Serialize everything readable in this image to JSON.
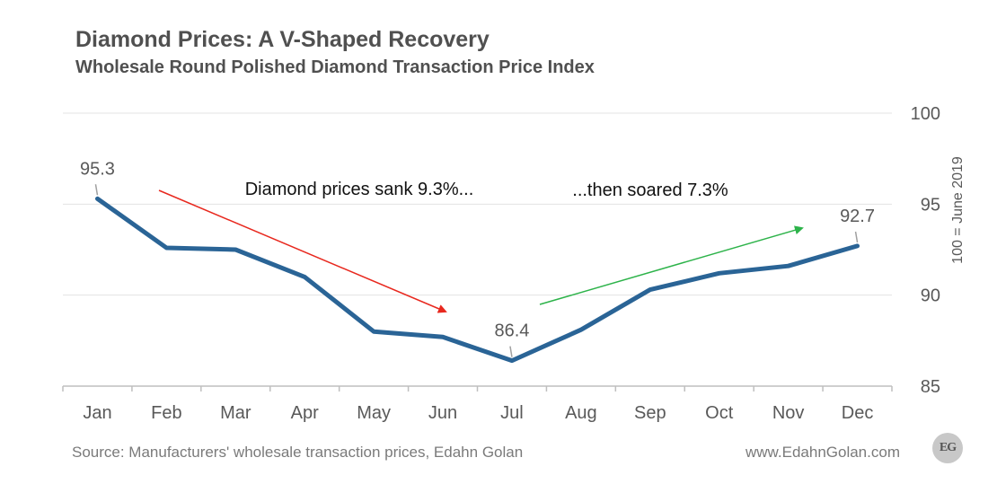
{
  "header": {
    "title": "Diamond Prices: A V-Shaped Recovery",
    "subtitle": "Wholesale Round Polished Diamond Transaction Price Index"
  },
  "footer": {
    "source": "Source: Manufacturers' wholesale transaction prices, Edahn Golan",
    "website": "www.EdahnGolan.com",
    "logo_text": "EG"
  },
  "chart_data": {
    "type": "line",
    "categories": [
      "Jan",
      "Feb",
      "Mar",
      "Apr",
      "May",
      "Jun",
      "Jul",
      "Aug",
      "Sep",
      "Oct",
      "Nov",
      "Dec"
    ],
    "series": [
      {
        "values": [
          95.3,
          92.6,
          92.5,
          91.0,
          88.0,
          87.7,
          86.4,
          88.1,
          90.3,
          91.2,
          91.6,
          92.7
        ]
      }
    ],
    "ylim": [
      85,
      100
    ],
    "yticks": [
      85,
      90,
      95,
      100
    ],
    "ylabel": "100 = June 2019",
    "y_axis_side": "right",
    "grid": true,
    "line_color": "#2a6496",
    "data_labels": [
      {
        "index": 0,
        "text": "95.3"
      },
      {
        "index": 6,
        "text": "86.4"
      },
      {
        "index": 11,
        "text": "92.7"
      }
    ],
    "annotations": [
      {
        "text": "Diamond prices sank 9.3%...",
        "arrow_color": "#e8281e",
        "direction": "down"
      },
      {
        "text": "...then soared 7.3%",
        "arrow_color": "#2db34a",
        "direction": "up"
      }
    ]
  }
}
